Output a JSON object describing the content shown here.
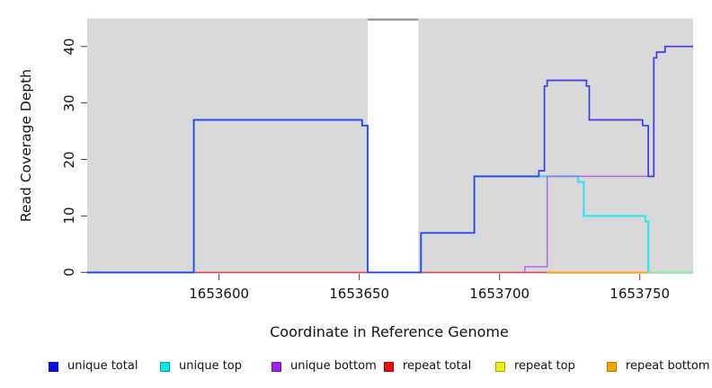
{
  "figure_title": "",
  "x_axis": {
    "title": "Coordinate in Reference Genome",
    "ticks": [
      {
        "value": 1653600,
        "label": "1653600"
      },
      {
        "value": 1653650,
        "label": "1653650"
      },
      {
        "value": 1653700,
        "label": "1653700"
      },
      {
        "value": 1653750,
        "label": "1653750"
      }
    ]
  },
  "y_axis": {
    "title": "Read Coverage Depth",
    "ticks": [
      {
        "value": 0,
        "label": "0"
      },
      {
        "value": 10,
        "label": "10"
      },
      {
        "value": 20,
        "label": "20"
      },
      {
        "value": 30,
        "label": "30"
      },
      {
        "value": 40,
        "label": "40"
      }
    ]
  },
  "legend": [
    {
      "label": "unique total",
      "fill": "#0B0BEE",
      "border": "#0008A8"
    },
    {
      "label": "unique top",
      "fill": "#0AEAEA",
      "border": "#00A0A8"
    },
    {
      "label": "unique bottom",
      "fill": "#A021EF",
      "border": "#6E14A6"
    },
    {
      "label": "repeat total",
      "fill": "#EE0B0B",
      "border": "#A80000"
    },
    {
      "label": "repeat top",
      "fill": "#EFEF10",
      "border": "#A8A400"
    },
    {
      "label": "repeat bottom",
      "fill": "#FFA408",
      "border": "#B27200"
    }
  ],
  "chart_data": {
    "type": "line",
    "subtype": "step",
    "title": "",
    "xlabel": "Coordinate in Reference Genome",
    "ylabel": "Read Coverage Depth",
    "xlim": [
      1653553,
      1653769
    ],
    "ylim": [
      0,
      45
    ],
    "grid": false,
    "plot_bg": "#D9D9D9",
    "no_data_gap": {
      "x0": 1653653,
      "x1": 1653671,
      "fill": "#FFFFFF",
      "top_strip": "#9C9C9C"
    },
    "series": [
      {
        "name": "repeat-total",
        "legend": "repeat total",
        "color": "#DC4455",
        "width": 1.4,
        "points": [
          [
            1653553,
            0
          ],
          [
            1653717,
            0
          ]
        ]
      },
      {
        "name": "repeat-top",
        "legend": "repeat top",
        "color": "#EFEF10",
        "width": 1.4,
        "points": []
      },
      {
        "name": "repeat-bottom",
        "legend": "repeat bottom",
        "color": "#FFA012",
        "width": 1.8,
        "points": [
          [
            1653717,
            0
          ],
          [
            1653753,
            0
          ]
        ]
      },
      {
        "name": "baseline-overlap",
        "legend": "",
        "color": "#8FE89F",
        "width": 1.8,
        "points": [
          [
            1653753,
            0
          ],
          [
            1653769,
            0
          ]
        ]
      },
      {
        "name": "unique-top",
        "legend": "unique top",
        "color": "#38E3EC",
        "width": 2.2,
        "points": [
          [
            1653553,
            0
          ],
          [
            1653591,
            0
          ],
          [
            1653591,
            27
          ],
          [
            1653651,
            27
          ],
          [
            1653651,
            26
          ],
          [
            1653653,
            26
          ],
          [
            1653653,
            0
          ],
          [
            1653672,
            0
          ],
          [
            1653672,
            7
          ],
          [
            1653691,
            7
          ],
          [
            1653691,
            17
          ],
          [
            1653728,
            17
          ],
          [
            1653728,
            16
          ],
          [
            1653730,
            16
          ],
          [
            1653730,
            10
          ],
          [
            1653752,
            10
          ],
          [
            1653752,
            9
          ],
          [
            1653753,
            9
          ],
          [
            1653753,
            0
          ]
        ]
      },
      {
        "name": "unique-bottom",
        "legend": "unique bottom",
        "color": "#B06AEA",
        "width": 1.5,
        "points": [
          [
            1653709,
            0
          ],
          [
            1653709,
            1
          ],
          [
            1653717,
            1
          ],
          [
            1653717,
            17
          ],
          [
            1653755,
            17
          ]
        ]
      },
      {
        "name": "unique-total",
        "legend": "unique total",
        "color": "#3A3AE8",
        "width": 1.7,
        "points": [
          [
            1653553,
            0
          ],
          [
            1653591,
            0
          ],
          [
            1653591,
            27
          ],
          [
            1653651,
            27
          ],
          [
            1653651,
            26
          ],
          [
            1653653,
            26
          ],
          [
            1653653,
            0
          ],
          [
            1653672,
            0
          ],
          [
            1653672,
            7
          ],
          [
            1653691,
            7
          ],
          [
            1653691,
            17
          ],
          [
            1653714,
            17
          ],
          [
            1653714,
            18
          ],
          [
            1653716,
            18
          ],
          [
            1653716,
            33
          ],
          [
            1653717,
            33
          ],
          [
            1653717,
            34
          ],
          [
            1653731,
            34
          ],
          [
            1653731,
            33
          ],
          [
            1653732,
            33
          ],
          [
            1653732,
            27
          ],
          [
            1653751,
            27
          ],
          [
            1653751,
            26
          ],
          [
            1653753,
            26
          ],
          [
            1653753,
            17
          ],
          [
            1653755,
            17
          ],
          [
            1653755,
            38
          ],
          [
            1653756,
            38
          ],
          [
            1653756,
            39
          ],
          [
            1653759,
            39
          ],
          [
            1653759,
            40
          ],
          [
            1653769,
            40
          ]
        ]
      }
    ]
  }
}
